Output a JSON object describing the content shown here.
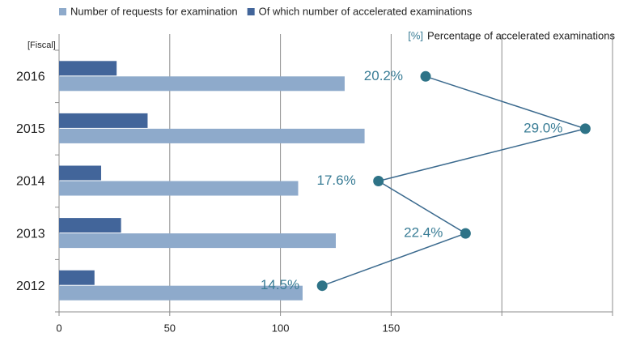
{
  "chart_data": {
    "type": "bar",
    "orientation": "horizontal",
    "y_label": "[Fiscal]",
    "categories": [
      "2016",
      "2015",
      "2014",
      "2013",
      "2012"
    ],
    "series": [
      {
        "name": "Number of requests for examination",
        "color": "#8eaacb",
        "values": [
          129,
          138,
          108,
          125,
          110
        ]
      },
      {
        "name": "Of which number of accelerated examinations",
        "color": "#42659a",
        "values": [
          26,
          40,
          19,
          28,
          16
        ]
      },
      {
        "name": "Percentage of accelerated examinations",
        "unit": "[%]",
        "type": "line",
        "axis": "x2",
        "color": "#3b6a8e",
        "marker_color": "#2e7387",
        "label_color": "#3a7d96",
        "values": [
          20.2,
          29.0,
          17.6,
          22.4,
          14.5
        ],
        "value_labels": [
          "20.2%",
          "29.0%",
          "17.6%",
          "22.4%",
          "14.5%"
        ]
      }
    ],
    "xlim": [
      0,
      250
    ],
    "xticks": [
      0,
      50,
      100,
      150,
      {
        "value": 200,
        "label": null
      },
      {
        "value": 250,
        "label": null
      }
    ],
    "x2lim": [
      0,
      30.5
    ],
    "grid": true,
    "legend": "top"
  }
}
